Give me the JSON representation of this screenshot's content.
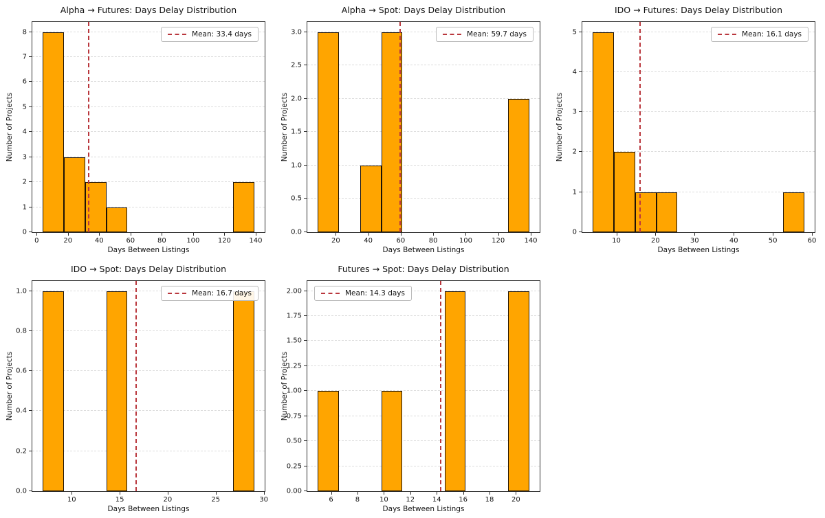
{
  "figure": {
    "background": "#ffffff"
  },
  "colors": {
    "bar_fill": "#FFA500",
    "bar_edge": "#1c1207",
    "mean_line": "#b9373d",
    "grid": "#dcdcdc",
    "spine": "#2b2b2b",
    "legend_border": "#b9b9b9",
    "text": "#111111"
  },
  "chart_data": [
    {
      "id": "alpha-futures",
      "type": "bar",
      "title": "Alpha → Futures: Days Delay Distribution",
      "xlabel": "Days Between Listings",
      "ylabel": "Number of Projects",
      "bin_start": 4,
      "bin_width": 13.5,
      "counts": [
        8,
        3,
        2,
        1,
        0,
        0,
        0,
        0,
        0,
        2
      ],
      "mean": 33.4,
      "legend_label": "Mean: 33.4 days",
      "legend_loc": "upper-right",
      "xlim": [
        -2.75,
        145.75
      ],
      "ylim": [
        0,
        8.4
      ],
      "x_ticks": {
        "values": [
          0,
          20,
          40,
          60,
          80,
          100,
          120,
          140
        ],
        "decimals": 0
      },
      "y_ticks": {
        "values": [
          0,
          1,
          2,
          3,
          4,
          5,
          6,
          7,
          8
        ],
        "decimals": 0
      },
      "grid": "horizontal-dashed",
      "legend_position": "upper right"
    },
    {
      "id": "alpha-spot",
      "type": "bar",
      "title": "Alpha → Spot: Days Delay Distribution",
      "xlabel": "Days Between Listings",
      "ylabel": "Number of Projects",
      "bin_start": 9,
      "bin_width": 13,
      "counts": [
        3,
        0,
        1,
        3,
        0,
        0,
        0,
        0,
        0,
        2
      ],
      "mean": 59.7,
      "legend_label": "Mean: 59.7 days",
      "legend_loc": "upper-right",
      "xlim": [
        2.5,
        145.5
      ],
      "ylim": [
        0,
        3.15
      ],
      "x_ticks": {
        "values": [
          20,
          40,
          60,
          80,
          100,
          120,
          140
        ],
        "decimals": 0
      },
      "y_ticks": {
        "values": [
          0,
          0.5,
          1,
          1.5,
          2,
          2.5,
          3
        ],
        "decimals": 1
      },
      "grid": "horizontal-dashed",
      "legend_position": "upper right"
    },
    {
      "id": "ido-futures",
      "type": "bar",
      "title": "IDO → Futures: Days Delay Distribution",
      "xlabel": "Days Between Listings",
      "ylabel": "Number of Projects",
      "bin_start": 4,
      "bin_width": 5.4,
      "counts": [
        5,
        2,
        1,
        1,
        0,
        0,
        0,
        0,
        0,
        1
      ],
      "mean": 16.1,
      "legend_label": "Mean: 16.1 days",
      "legend_loc": "upper-right",
      "xlim": [
        1.3,
        60.7
      ],
      "ylim": [
        0,
        5.25
      ],
      "x_ticks": {
        "values": [
          10,
          20,
          30,
          40,
          50,
          60
        ],
        "decimals": 0
      },
      "y_ticks": {
        "values": [
          0,
          1,
          2,
          3,
          4,
          5
        ],
        "decimals": 0
      },
      "grid": "horizontal-dashed",
      "legend_position": "upper right"
    },
    {
      "id": "ido-spot",
      "type": "bar",
      "title": "IDO → Spot: Days Delay Distribution",
      "xlabel": "Days Between Listings",
      "ylabel": "Number of Projects",
      "bin_start": 7,
      "bin_width": 2.2,
      "counts": [
        1,
        0,
        0,
        1,
        0,
        0,
        0,
        0,
        0,
        1
      ],
      "mean": 16.7,
      "legend_label": "Mean: 16.7 days",
      "legend_loc": "upper-right",
      "xlim": [
        5.9,
        30.1
      ],
      "ylim": [
        0,
        1.05
      ],
      "x_ticks": {
        "values": [
          10,
          15,
          20,
          25,
          30
        ],
        "decimals": 0
      },
      "y_ticks": {
        "values": [
          0,
          0.2,
          0.4,
          0.6,
          0.8,
          1
        ],
        "decimals": 1
      },
      "grid": "horizontal-dashed",
      "legend_position": "upper right"
    },
    {
      "id": "futures-spot",
      "type": "bar",
      "title": "Futures → Spot: Days Delay Distribution",
      "xlabel": "Days Between Listings",
      "ylabel": "Number of Projects",
      "bin_start": 5,
      "bin_width": 1.6,
      "counts": [
        1,
        0,
        0,
        1,
        0,
        0,
        2,
        0,
        0,
        2
      ],
      "mean": 14.3,
      "legend_label": "Mean: 14.3 days",
      "legend_loc": "upper-left",
      "xlim": [
        4.2,
        21.8
      ],
      "ylim": [
        0,
        2.1
      ],
      "x_ticks": {
        "values": [
          6,
          8,
          10,
          12,
          14,
          16,
          18,
          20
        ],
        "decimals": 0
      },
      "y_ticks": {
        "values": [
          0,
          0.25,
          0.5,
          0.75,
          1,
          1.25,
          1.5,
          1.75,
          2
        ],
        "decimals": 2
      },
      "grid": "horizontal-dashed",
      "legend_position": "upper left"
    }
  ]
}
